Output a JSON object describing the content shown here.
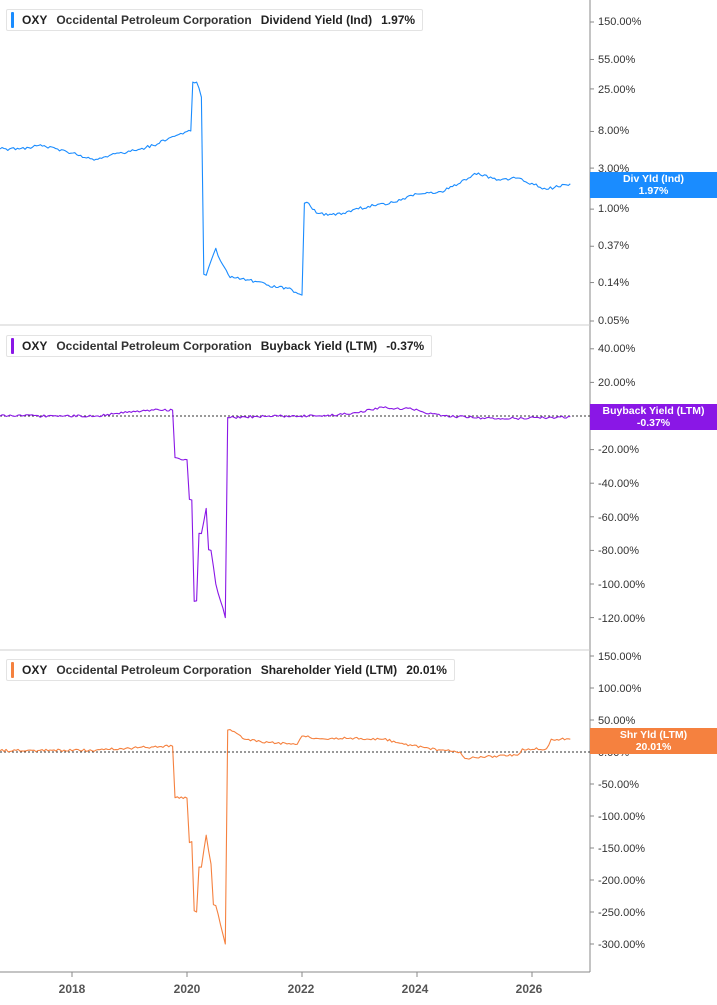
{
  "chart_data": [
    {
      "type": "line",
      "ticker": "OXY",
      "company": "Occidental Petroleum Corporation",
      "series_name": "Dividend Yield (Ind)",
      "latest_value": "1.97%",
      "badge_label": "Div Yld (Ind)",
      "color": "#1a8cff",
      "y_scale": "log",
      "ylim": [
        0.05,
        200
      ],
      "y_ticks": [
        "150.00%",
        "55.00%",
        "25.00%",
        "8.00%",
        "3.00%",
        "1.00%",
        "0.37%",
        "0.14%",
        "0.05%"
      ],
      "y_tick_values": [
        150,
        55,
        25,
        8,
        3,
        1,
        0.37,
        0.14,
        0.05
      ],
      "points": [
        [
          "2016-10",
          5.0
        ],
        [
          "2017-02",
          5.0
        ],
        [
          "2017-06",
          5.5
        ],
        [
          "2017-10",
          5.0
        ],
        [
          "2018-02",
          4.3
        ],
        [
          "2018-06",
          3.8
        ],
        [
          "2018-10",
          4.4
        ],
        [
          "2019-02",
          4.8
        ],
        [
          "2019-06",
          5.5
        ],
        [
          "2019-10",
          7.0
        ],
        [
          "2020-01",
          8.0
        ],
        [
          "2020-03",
          30.0
        ],
        [
          "2020-04",
          20.0
        ],
        [
          "2020-05",
          0.17
        ],
        [
          "2020-06",
          0.25
        ],
        [
          "2020-07",
          0.35
        ],
        [
          "2020-08",
          0.25
        ],
        [
          "2020-10",
          0.16
        ],
        [
          "2021-02",
          0.15
        ],
        [
          "2021-06",
          0.13
        ],
        [
          "2021-10",
          0.12
        ],
        [
          "2022-01",
          0.1
        ],
        [
          "2022-02",
          1.2
        ],
        [
          "2022-04",
          0.9
        ],
        [
          "2022-08",
          0.85
        ],
        [
          "2022-12",
          1.0
        ],
        [
          "2023-04",
          1.1
        ],
        [
          "2023-08",
          1.2
        ],
        [
          "2024-01",
          1.5
        ],
        [
          "2024-06",
          1.6
        ],
        [
          "2024-10",
          2.0
        ],
        [
          "2025-01",
          2.6
        ],
        [
          "2025-06",
          2.2
        ],
        [
          "2025-10",
          2.3
        ],
        [
          "2026-04",
          1.7
        ],
        [
          "2026-09",
          1.97
        ]
      ]
    },
    {
      "type": "line",
      "ticker": "OXY",
      "company": "Occidental Petroleum Corporation",
      "series_name": "Buyback Yield (LTM)",
      "latest_value": "-0.37%",
      "badge_label": "Buyback Yield (LTM)",
      "color": "#8a17e6",
      "y_scale": "linear",
      "ylim": [
        -128,
        48
      ],
      "y_ticks": [
        "40.00%",
        "20.00%",
        "-20.00%",
        "-40.00%",
        "-60.00%",
        "-80.00%",
        "-100.00%",
        "-120.00%"
      ],
      "y_tick_values": [
        40,
        20,
        -20,
        -40,
        -60,
        -80,
        -100,
        -120
      ],
      "points": [
        [
          "2016-10",
          0.0
        ],
        [
          "2018-06",
          0.0
        ],
        [
          "2018-10",
          1.5
        ],
        [
          "2019-06",
          3.5
        ],
        [
          "2019-10",
          3.5
        ],
        [
          "2019-11",
          -25.0
        ],
        [
          "2020-01",
          -26.0
        ],
        [
          "2020-02",
          -50.0
        ],
        [
          "2020-03",
          -110.0
        ],
        [
          "2020-04",
          -70.0
        ],
        [
          "2020-05",
          -55.0
        ],
        [
          "2020-06",
          -80.0
        ],
        [
          "2020-07",
          -100.0
        ],
        [
          "2020-08",
          -110.0
        ],
        [
          "2020-09",
          -120.0
        ],
        [
          "2020-10",
          -1.0
        ],
        [
          "2021-06",
          0.0
        ],
        [
          "2022-06",
          0.0
        ],
        [
          "2022-12",
          2.0
        ],
        [
          "2023-06",
          5.0
        ],
        [
          "2023-12",
          4.0
        ],
        [
          "2024-06",
          0.0
        ],
        [
          "2025-06",
          -1.5
        ],
        [
          "2026-06",
          -1.0
        ],
        [
          "2026-09",
          -0.37
        ]
      ]
    },
    {
      "type": "line",
      "ticker": "OXY",
      "company": "Occidental Petroleum Corporation",
      "series_name": "Shareholder Yield (LTM)",
      "latest_value": "20.01%",
      "badge_label": "Shr Yld (LTM)",
      "color": "#f5813f",
      "y_scale": "linear",
      "ylim": [
        -315,
        160
      ],
      "y_ticks": [
        "150.00%",
        "100.00%",
        "50.00%",
        "0.00%",
        "-50.00%",
        "-100.00%",
        "-150.00%",
        "-200.00%",
        "-250.00%",
        "-300.00%"
      ],
      "y_tick_values": [
        150,
        100,
        50,
        0,
        -50,
        -100,
        -150,
        -200,
        -250,
        -300
      ],
      "points": [
        [
          "2016-10",
          2.0
        ],
        [
          "2018-06",
          3.0
        ],
        [
          "2019-06",
          8.0
        ],
        [
          "2019-10",
          9.0
        ],
        [
          "2019-11",
          -70.0
        ],
        [
          "2020-01",
          -72.0
        ],
        [
          "2020-02",
          -140.0
        ],
        [
          "2020-03",
          -250.0
        ],
        [
          "2020-04",
          -180.0
        ],
        [
          "2020-05",
          -130.0
        ],
        [
          "2020-06",
          -175.0
        ],
        [
          "2020-07",
          -240.0
        ],
        [
          "2020-08",
          -270.0
        ],
        [
          "2020-09",
          -300.0
        ],
        [
          "2020-10",
          35.0
        ],
        [
          "2021-01",
          20.0
        ],
        [
          "2021-06",
          15.0
        ],
        [
          "2021-12",
          12.0
        ],
        [
          "2022-01",
          25.0
        ],
        [
          "2022-06",
          20.0
        ],
        [
          "2022-12",
          22.0
        ],
        [
          "2023-06",
          20.0
        ],
        [
          "2023-12",
          10.0
        ],
        [
          "2024-06",
          3.0
        ],
        [
          "2024-10",
          0.0
        ],
        [
          "2024-11",
          -10.0
        ],
        [
          "2025-06",
          -6.0
        ],
        [
          "2025-10",
          -5.0
        ],
        [
          "2025-11",
          5.0
        ],
        [
          "2026-04",
          5.0
        ],
        [
          "2026-05",
          20.0
        ],
        [
          "2026-09",
          20.01
        ]
      ]
    }
  ],
  "x_axis": {
    "ticks": [
      "2018",
      "2020",
      "2022",
      "2024",
      "2026"
    ],
    "tick_dates": [
      "2018-01",
      "2020-01",
      "2022-01",
      "2024-01",
      "2026-01"
    ],
    "range": [
      "2016-10",
      "2026-11"
    ]
  }
}
